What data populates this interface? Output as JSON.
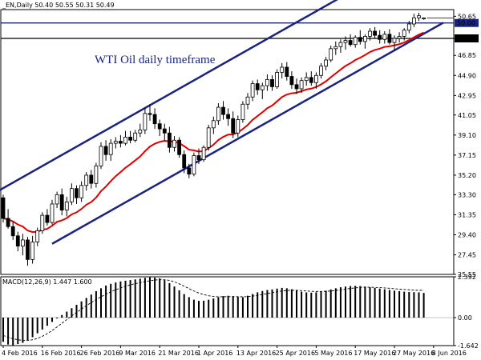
{
  "chart_data": [
    {
      "type": "candlestick",
      "header": "_EN,Daily  50.40 50.55 50.31 50.49",
      "annotation": "WTI Oil daily timeframe",
      "ylim": [
        25.55,
        51.3
      ],
      "y_ticks": [
        "50.65",
        "48.50",
        "46.85",
        "44.90",
        "42.95",
        "41.05",
        "39.10",
        "37.15",
        "35.20",
        "33.30",
        "31.35",
        "29.40",
        "27.45",
        "25.55"
      ],
      "price_labels": [
        {
          "value": 50.0,
          "text": "50.00",
          "color": "#1a237e"
        },
        {
          "value": 48.5,
          "text": "48.50",
          "color": "#000000"
        }
      ],
      "x_labels": [
        "4 Feb 2016",
        "16 Feb 2016",
        "26 Feb 2016",
        "9 Mar 2016",
        "21 Mar 2016",
        "1 Apr 2016",
        "13 Apr 2016",
        "25 Apr 2016",
        "5 May 2016",
        "17 May 2016",
        "27 May 2016",
        "8 Jun 2016"
      ],
      "x_label_bars": [
        0,
        8,
        16,
        24,
        32,
        40,
        48,
        56,
        64,
        72,
        80,
        88
      ],
      "ohlc": [
        [
          33.0,
          33.3,
          30.6,
          31.0
        ],
        [
          31.0,
          31.9,
          30.0,
          30.2
        ],
        [
          30.2,
          30.7,
          28.9,
          29.3
        ],
        [
          29.3,
          29.7,
          27.8,
          28.3
        ],
        [
          28.3,
          29.5,
          27.4,
          28.9
        ],
        [
          28.9,
          29.2,
          26.4,
          27.0
        ],
        [
          27.0,
          29.3,
          26.6,
          28.7
        ],
        [
          28.7,
          30.1,
          28.3,
          29.8
        ],
        [
          29.8,
          31.6,
          29.5,
          31.3
        ],
        [
          31.3,
          31.9,
          30.3,
          30.6
        ],
        [
          30.6,
          32.8,
          30.4,
          32.4
        ],
        [
          32.4,
          33.6,
          32.0,
          33.3
        ],
        [
          33.3,
          33.9,
          31.3,
          31.8
        ],
        [
          31.8,
          33.1,
          31.2,
          32.6
        ],
        [
          32.6,
          34.4,
          32.3,
          33.9
        ],
        [
          33.9,
          34.2,
          32.4,
          33.0
        ],
        [
          33.0,
          34.6,
          32.6,
          34.2
        ],
        [
          34.2,
          35.5,
          33.7,
          35.2
        ],
        [
          35.2,
          35.7,
          33.9,
          34.4
        ],
        [
          34.4,
          36.4,
          34.0,
          36.1
        ],
        [
          36.1,
          38.4,
          35.8,
          38.0
        ],
        [
          38.0,
          38.6,
          36.6,
          37.2
        ],
        [
          37.2,
          38.7,
          36.6,
          38.3
        ],
        [
          38.3,
          38.9,
          37.8,
          38.5
        ],
        [
          38.5,
          39.1,
          37.9,
          38.3
        ],
        [
          38.3,
          39.5,
          38.1,
          38.9
        ],
        [
          38.9,
          39.5,
          38.3,
          38.6
        ],
        [
          38.6,
          39.6,
          38.4,
          39.3
        ],
        [
          39.3,
          40.2,
          38.9,
          39.6
        ],
        [
          39.6,
          41.7,
          39.2,
          41.2
        ],
        [
          41.2,
          42.1,
          40.5,
          41.1
        ],
        [
          41.1,
          41.7,
          39.7,
          40.2
        ],
        [
          40.2,
          40.6,
          39.0,
          39.7
        ],
        [
          39.7,
          40.2,
          38.6,
          39.3
        ],
        [
          39.3,
          39.9,
          37.4,
          37.9
        ],
        [
          37.9,
          39.0,
          37.5,
          38.6
        ],
        [
          38.6,
          38.9,
          36.9,
          37.2
        ],
        [
          37.2,
          37.6,
          35.4,
          35.9
        ],
        [
          35.9,
          36.3,
          34.9,
          35.3
        ],
        [
          35.3,
          37.4,
          35.1,
          37.1
        ],
        [
          37.1,
          37.8,
          36.3,
          36.7
        ],
        [
          36.7,
          38.1,
          36.5,
          37.9
        ],
        [
          37.9,
          40.1,
          37.6,
          39.8
        ],
        [
          39.8,
          40.9,
          39.2,
          40.5
        ],
        [
          40.5,
          42.2,
          40.1,
          41.8
        ],
        [
          41.8,
          42.4,
          40.6,
          41.1
        ],
        [
          41.1,
          41.7,
          40.0,
          40.7
        ],
        [
          40.7,
          41.4,
          38.8,
          39.3
        ],
        [
          39.3,
          41.0,
          38.9,
          40.6
        ],
        [
          40.6,
          42.4,
          40.3,
          42.1
        ],
        [
          42.1,
          43.2,
          41.6,
          42.8
        ],
        [
          42.8,
          44.4,
          42.4,
          44.1
        ],
        [
          44.1,
          44.5,
          43.0,
          43.5
        ],
        [
          43.5,
          44.2,
          42.6,
          43.9
        ],
        [
          43.9,
          45.0,
          43.4,
          44.5
        ],
        [
          44.5,
          44.9,
          43.4,
          43.8
        ],
        [
          43.8,
          45.5,
          43.6,
          45.2
        ],
        [
          45.2,
          46.1,
          44.6,
          45.7
        ],
        [
          45.7,
          46.2,
          44.4,
          44.8
        ],
        [
          44.8,
          45.3,
          43.6,
          44.0
        ],
        [
          44.0,
          44.6,
          43.1,
          43.6
        ],
        [
          43.6,
          44.7,
          43.2,
          44.4
        ],
        [
          44.4,
          45.2,
          43.9,
          44.7
        ],
        [
          44.7,
          45.3,
          43.9,
          44.2
        ],
        [
          44.2,
          45.2,
          43.6,
          44.9
        ],
        [
          44.9,
          46.1,
          44.6,
          45.8
        ],
        [
          45.8,
          46.7,
          45.4,
          46.4
        ],
        [
          46.4,
          47.8,
          46.2,
          47.5
        ],
        [
          47.5,
          48.2,
          46.9,
          47.7
        ],
        [
          47.7,
          48.4,
          47.1,
          48.1
        ],
        [
          48.1,
          48.7,
          47.4,
          48.3
        ],
        [
          48.3,
          48.9,
          47.7,
          47.9
        ],
        [
          47.9,
          48.8,
          47.6,
          48.6
        ],
        [
          48.6,
          49.3,
          47.9,
          48.2
        ],
        [
          48.2,
          48.9,
          47.5,
          48.7
        ],
        [
          48.7,
          49.5,
          48.3,
          49.2
        ],
        [
          49.2,
          49.6,
          48.5,
          48.8
        ],
        [
          48.8,
          49.3,
          48.0,
          48.4
        ],
        [
          48.4,
          49.2,
          48.0,
          48.9
        ],
        [
          48.9,
          49.4,
          47.9,
          48.1
        ],
        [
          48.1,
          48.8,
          47.3,
          48.5
        ],
        [
          48.5,
          49.1,
          48.1,
          48.7
        ],
        [
          48.7,
          49.5,
          48.3,
          49.3
        ],
        [
          49.3,
          50.2,
          49.0,
          49.9
        ],
        [
          49.9,
          50.9,
          49.6,
          50.5
        ],
        [
          50.5,
          51.0,
          50.2,
          50.7
        ],
        [
          50.4,
          50.55,
          50.31,
          50.49
        ]
      ],
      "ma_color": "#e00000",
      "channel_color": "#1a237e",
      "macd": {
        "header": "MACD(12,26,9) 1.447 1.600",
        "ylim": [
          -1.642,
          2.392
        ],
        "y_ticks": [
          "2.392",
          "0.00",
          "-1.642"
        ],
        "histogram": [
          -1.42,
          -1.58,
          -1.62,
          -1.55,
          -1.48,
          -1.32,
          -1.15,
          -0.92,
          -0.7,
          -0.48,
          -0.25,
          -0.05,
          0.15,
          0.35,
          0.55,
          0.75,
          0.95,
          1.15,
          1.35,
          1.55,
          1.72,
          1.88,
          1.98,
          2.06,
          2.12,
          2.16,
          2.2,
          2.24,
          2.28,
          2.33,
          2.36,
          2.35,
          2.3,
          2.2,
          2.02,
          1.82,
          1.6,
          1.38,
          1.2,
          1.05,
          0.98,
          0.99,
          1.05,
          1.12,
          1.2,
          1.26,
          1.28,
          1.26,
          1.22,
          1.2,
          1.28,
          1.38,
          1.48,
          1.56,
          1.62,
          1.65,
          1.7,
          1.74,
          1.72,
          1.66,
          1.58,
          1.52,
          1.48,
          1.46,
          1.48,
          1.52,
          1.58,
          1.65,
          1.72,
          1.78,
          1.82,
          1.85,
          1.86,
          1.85,
          1.82,
          1.78,
          1.74,
          1.7,
          1.66,
          1.62,
          1.58,
          1.55,
          1.52,
          1.5,
          1.49,
          1.48,
          1.447
        ],
        "signal": [
          -1.05,
          -1.15,
          -1.24,
          -1.3,
          -1.34,
          -1.34,
          -1.3,
          -1.22,
          -1.1,
          -0.94,
          -0.76,
          -0.55,
          -0.34,
          -0.12,
          0.1,
          0.3,
          0.5,
          0.7,
          0.88,
          1.06,
          1.22,
          1.37,
          1.51,
          1.63,
          1.74,
          1.84,
          1.92,
          1.99,
          2.05,
          2.11,
          2.16,
          2.2,
          2.22,
          2.22,
          2.18,
          2.1,
          1.98,
          1.84,
          1.7,
          1.56,
          1.44,
          1.35,
          1.28,
          1.24,
          1.22,
          1.22,
          1.23,
          1.23,
          1.23,
          1.22,
          1.23,
          1.26,
          1.3,
          1.35,
          1.41,
          1.46,
          1.51,
          1.56,
          1.59,
          1.6,
          1.6,
          1.58,
          1.56,
          1.54,
          1.53,
          1.53,
          1.54,
          1.56,
          1.59,
          1.63,
          1.67,
          1.71,
          1.74,
          1.77,
          1.78,
          1.78,
          1.77,
          1.76,
          1.74,
          1.72,
          1.69,
          1.67,
          1.65,
          1.63,
          1.61,
          1.6,
          1.6
        ]
      }
    }
  ]
}
